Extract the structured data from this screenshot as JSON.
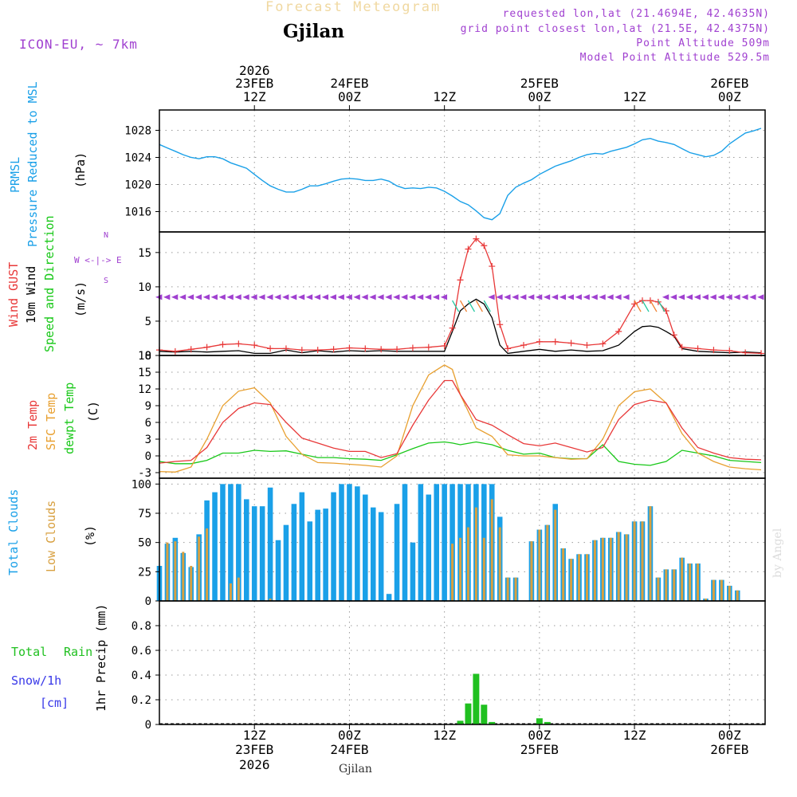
{
  "header": {
    "title": "Forecast Meteogram",
    "location": "Gjilan",
    "model": "ICON-EU, ~ 7km",
    "requested": "requested lon,lat (21.4694E, 42.4635N)",
    "gridpoint": "grid point closest lon,lat (21.5E, 42.4375N)",
    "point_alt": "Point Altitude 509m",
    "model_alt": "Model Point Altitude 529.5m",
    "watermark": "by Angel",
    "footer_location": "Gjilan"
  },
  "colors": {
    "prmsl": "#1aa0e8",
    "gust": "#e83838",
    "wind": "#000000",
    "dir": "#a040d0",
    "t2m": "#e83838",
    "sfc": "#e8a030",
    "dewpt": "#18c818",
    "total_cloud": "#1aa0e8",
    "low_cloud": "#d8a040",
    "rain": "#20c020",
    "snow": "#3838e8"
  },
  "time_axis": {
    "top_ticks": [
      {
        "h": 12,
        "l1": "2026",
        "l2": "23FEB",
        "l3": "12Z"
      },
      {
        "h": 24,
        "l1": "",
        "l2": "24FEB",
        "l3": "00Z"
      },
      {
        "h": 36,
        "l1": "",
        "l2": "",
        "l3": "12Z"
      },
      {
        "h": 48,
        "l1": "",
        "l2": "25FEB",
        "l3": "00Z"
      },
      {
        "h": 60,
        "l1": "",
        "l2": "",
        "l3": "12Z"
      },
      {
        "h": 72,
        "l1": "",
        "l2": "26FEB",
        "l3": "00Z"
      }
    ],
    "bottom_ticks": [
      {
        "h": 12,
        "l1": "12Z",
        "l2": "23FEB",
        "l3": "2026"
      },
      {
        "h": 24,
        "l1": "00Z",
        "l2": "24FEB",
        "l3": ""
      },
      {
        "h": 36,
        "l1": "12Z",
        "l2": "",
        "l3": ""
      },
      {
        "h": 48,
        "l1": "00Z",
        "l2": "25FEB",
        "l3": ""
      },
      {
        "h": 60,
        "l1": "12Z",
        "l2": "",
        "l3": ""
      },
      {
        "h": 72,
        "l1": "00Z",
        "l2": "26FEB",
        "l3": ""
      }
    ],
    "xlim_hours": [
      0,
      76.5
    ],
    "note": "hour 0 = 23FEB 00Z"
  },
  "labels": {
    "prmsl_1": "PRMSL",
    "prmsl_2": "Pressure Reduced to MSL",
    "prmsl_unit": "(hPa)",
    "gust": "Wind GUST",
    "wind": "10m Wind",
    "dir": "Speed and Direction",
    "wind_unit": "(m/s)",
    "compass_n": "N",
    "compass_s": "S",
    "compass_ew": "W <-|-> E",
    "t2m": "2m Temp",
    "sfc": "SFC Temp",
    "dewpt": "dewpt Temp",
    "temp_unit": "(C)",
    "total_cloud": "Total Clouds",
    "low_cloud": "Low Clouds",
    "cloud_unit": "(%)",
    "total": "Total",
    "rain": "Rain",
    "snow": "Snow/1h",
    "snow_unit": "[cm]",
    "precip": "1hr Precip (mm)"
  },
  "chart_data": [
    {
      "type": "line",
      "title": "PRMSL Pressure Reduced to MSL",
      "ylabel": "(hPa)",
      "ylim": [
        1013,
        1031
      ],
      "yticks": [
        1016,
        1020,
        1024,
        1028
      ],
      "x": [
        0,
        1,
        2,
        3,
        4,
        5,
        6,
        7,
        8,
        9,
        10,
        11,
        12,
        13,
        14,
        15,
        16,
        17,
        18,
        19,
        20,
        21,
        22,
        23,
        24,
        25,
        26,
        27,
        28,
        29,
        30,
        31,
        32,
        33,
        34,
        35,
        36,
        37,
        38,
        39,
        40,
        41,
        42,
        43,
        44,
        45,
        46,
        47,
        48,
        49,
        50,
        51,
        52,
        53,
        54,
        55,
        56,
        57,
        58,
        59,
        60,
        61,
        62,
        63,
        64,
        65,
        66,
        67,
        68,
        69,
        70,
        71,
        72,
        73,
        74,
        75,
        76
      ],
      "series": [
        {
          "name": "PRMSL",
          "values": [
            1025.9,
            1025.4,
            1024.9,
            1024.4,
            1024.0,
            1023.8,
            1024.1,
            1024.1,
            1023.8,
            1023.2,
            1022.8,
            1022.4,
            1021.5,
            1020.6,
            1019.8,
            1019.3,
            1018.9,
            1018.9,
            1019.3,
            1019.8,
            1019.8,
            1020.1,
            1020.5,
            1020.8,
            1020.9,
            1020.8,
            1020.6,
            1020.6,
            1020.8,
            1020.5,
            1019.8,
            1019.4,
            1019.5,
            1019.4,
            1019.6,
            1019.5,
            1019.0,
            1018.3,
            1017.5,
            1017.0,
            1016.1,
            1015.1,
            1014.8,
            1015.7,
            1018.4,
            1019.6,
            1020.2,
            1020.7,
            1021.5,
            1022.1,
            1022.7,
            1023.1,
            1023.5,
            1024.0,
            1024.4,
            1024.6,
            1024.5,
            1024.9,
            1025.2,
            1025.5,
            1026.0,
            1026.6,
            1026.8,
            1026.4,
            1026.2,
            1025.9,
            1025.3,
            1024.7,
            1024.4,
            1024.1,
            1024.3,
            1024.9,
            1026.0,
            1026.8,
            1027.6,
            1027.9,
            1028.3
          ]
        }
      ]
    },
    {
      "type": "line",
      "title": "Wind GUST / 10m Wind Speed and Direction",
      "ylabel": "(m/s)",
      "ylim": [
        0,
        18
      ],
      "yticks": [
        0,
        5,
        10,
        15
      ],
      "x": [
        0,
        2,
        4,
        6,
        8,
        10,
        12,
        14,
        16,
        18,
        20,
        22,
        24,
        26,
        28,
        30,
        32,
        34,
        36,
        37,
        38,
        39,
        40,
        41,
        42,
        43,
        44,
        46,
        48,
        50,
        52,
        54,
        56,
        58,
        60,
        61,
        62,
        63,
        64,
        65,
        66,
        68,
        70,
        72,
        74,
        76
      ],
      "series": [
        {
          "name": "Wind GUST",
          "values": [
            0.8,
            0.6,
            0.9,
            1.2,
            1.6,
            1.7,
            1.5,
            1.0,
            1.0,
            0.8,
            0.8,
            0.9,
            1.1,
            1.0,
            0.9,
            0.9,
            1.1,
            1.2,
            1.4,
            4.0,
            11.0,
            15.5,
            17.0,
            16.0,
            13.0,
            4.5,
            1.0,
            1.5,
            2.0,
            2.0,
            1.8,
            1.5,
            1.7,
            3.5,
            7.5,
            8.0,
            8.0,
            7.8,
            6.5,
            3.0,
            1.2,
            1.0,
            0.8,
            0.7,
            0.4,
            0.3
          ]
        },
        {
          "name": "10m Wind",
          "values": [
            0.6,
            0.5,
            0.6,
            0.5,
            0.6,
            0.7,
            0.3,
            0.3,
            0.8,
            0.4,
            0.7,
            0.5,
            0.7,
            0.6,
            0.7,
            0.6,
            0.6,
            0.6,
            0.6,
            3.5,
            6.5,
            7.5,
            8.2,
            7.5,
            5.5,
            1.5,
            0.3,
            0.6,
            0.9,
            0.6,
            0.8,
            0.6,
            0.7,
            1.5,
            3.5,
            4.2,
            4.3,
            4.1,
            3.5,
            2.8,
            1.0,
            0.6,
            0.5,
            0.4,
            0.5,
            0.4
          ]
        }
      ],
      "direction_arrows_at_ms": 8.5
    },
    {
      "type": "line",
      "title": "2m Temp / SFC Temp / dewpt Temp",
      "ylabel": "(C)",
      "ylim": [
        -4,
        18
      ],
      "yticks": [
        -3,
        0,
        3,
        6,
        9,
        12,
        15,
        18
      ],
      "x": [
        0,
        2,
        4,
        6,
        8,
        10,
        12,
        14,
        16,
        18,
        20,
        22,
        24,
        26,
        28,
        30,
        32,
        34,
        36,
        37,
        38,
        40,
        42,
        44,
        46,
        48,
        50,
        52,
        54,
        56,
        58,
        60,
        62,
        64,
        66,
        68,
        70,
        72,
        74,
        76
      ],
      "series": [
        {
          "name": "2m Temp",
          "values": [
            -1.3,
            -1.0,
            -0.8,
            1.5,
            6.0,
            8.5,
            9.5,
            9.2,
            6.0,
            3.2,
            2.3,
            1.4,
            0.8,
            0.8,
            -0.3,
            0.4,
            5.5,
            10.0,
            13.5,
            13.5,
            11.0,
            6.5,
            5.5,
            3.8,
            2.2,
            1.8,
            2.3,
            1.5,
            0.7,
            1.5,
            6.5,
            9.2,
            10.0,
            9.5,
            5.0,
            1.5,
            0.5,
            -0.3,
            -0.6,
            -0.7
          ]
        },
        {
          "name": "SFC Temp",
          "values": [
            -2.8,
            -2.9,
            -2.0,
            3.0,
            9.0,
            11.6,
            12.2,
            9.5,
            3.5,
            0.3,
            -1.2,
            -1.3,
            -1.5,
            -1.7,
            -2.0,
            0.0,
            9.0,
            14.5,
            16.3,
            15.5,
            11.0,
            5.0,
            3.5,
            0.2,
            0.0,
            0.0,
            -0.3,
            -0.6,
            -0.5,
            3.0,
            9.0,
            11.5,
            12.0,
            9.5,
            4.0,
            0.5,
            -1.0,
            -2.0,
            -2.3,
            -2.5
          ]
        },
        {
          "name": "dewpt Temp",
          "values": [
            -1.0,
            -1.4,
            -1.4,
            -0.8,
            0.5,
            0.5,
            1.0,
            0.8,
            0.9,
            0.3,
            -0.3,
            -0.3,
            -0.5,
            -0.6,
            -0.8,
            0.2,
            1.3,
            2.3,
            2.5,
            2.3,
            2.0,
            2.5,
            2.0,
            1.0,
            0.3,
            0.5,
            -0.3,
            -0.5,
            -0.5,
            2.0,
            -1.0,
            -1.5,
            -1.7,
            -1.0,
            1.0,
            0.5,
            0.0,
            -0.8,
            -1.0,
            -1.2
          ]
        }
      ]
    },
    {
      "type": "bar",
      "title": "Total Clouds / Low Clouds",
      "ylabel": "(%)",
      "ylim": [
        0,
        105
      ],
      "yticks": [
        0,
        25,
        50,
        75,
        100
      ],
      "x": [
        0,
        1,
        2,
        3,
        4,
        5,
        6,
        7,
        8,
        9,
        10,
        11,
        12,
        13,
        14,
        15,
        16,
        17,
        18,
        19,
        20,
        21,
        22,
        23,
        24,
        25,
        26,
        27,
        28,
        29,
        30,
        31,
        32,
        33,
        34,
        35,
        36,
        37,
        38,
        39,
        40,
        41,
        42,
        43,
        44,
        45,
        46,
        47,
        48,
        49,
        50,
        51,
        52,
        53,
        54,
        55,
        56,
        57,
        58,
        59,
        60,
        61,
        62,
        63,
        64,
        65,
        66,
        67,
        68,
        69,
        70,
        71,
        72,
        73,
        74,
        75,
        76
      ],
      "series": [
        {
          "name": "Total Clouds",
          "values": [
            30,
            49,
            54,
            41,
            29,
            57,
            86,
            93,
            100,
            100,
            100,
            87,
            81,
            81,
            97,
            52,
            65,
            83,
            93,
            68,
            78,
            79,
            93,
            100,
            100,
            98,
            91,
            80,
            76,
            6,
            83,
            100,
            50,
            100,
            91,
            100,
            100,
            100,
            100,
            100,
            100,
            100,
            100,
            72,
            20,
            20,
            0,
            51,
            61,
            65,
            83,
            45,
            36,
            40,
            40,
            52,
            54,
            54,
            59,
            57,
            68,
            68,
            81,
            20,
            27,
            27,
            37,
            32,
            32,
            2,
            18,
            18,
            13,
            9,
            0,
            0,
            0
          ]
        },
        {
          "name": "Low Clouds",
          "values": [
            0,
            50,
            51,
            42,
            30,
            55,
            62,
            0,
            0,
            15,
            20,
            0,
            0,
            0,
            2,
            0,
            0,
            0,
            0,
            0,
            0,
            0,
            0,
            0,
            0,
            0,
            0,
            0,
            0,
            0,
            0,
            0,
            0,
            0,
            0,
            0,
            0,
            49,
            54,
            63,
            80,
            54,
            87,
            63,
            20,
            20,
            0,
            51,
            61,
            65,
            78,
            45,
            36,
            40,
            40,
            52,
            54,
            54,
            59,
            57,
            68,
            68,
            81,
            20,
            27,
            27,
            37,
            32,
            32,
            2,
            18,
            18,
            13,
            9,
            0,
            0,
            0
          ]
        }
      ]
    },
    {
      "type": "bar",
      "title": "1hr Precip (mm)",
      "ylabel": "1hr Precip (mm)",
      "ylim": [
        0,
        1.0
      ],
      "yticks": [
        0,
        0.2,
        0.4,
        0.6,
        0.8
      ],
      "series": [
        {
          "name": "Total Rain",
          "x": [
            38,
            39,
            40,
            41,
            42,
            48,
            49
          ],
          "values": [
            0.03,
            0.17,
            0.41,
            0.16,
            0.02,
            0.05,
            0.02
          ]
        },
        {
          "name": "Snow/1h",
          "x": [],
          "values": []
        }
      ]
    }
  ]
}
